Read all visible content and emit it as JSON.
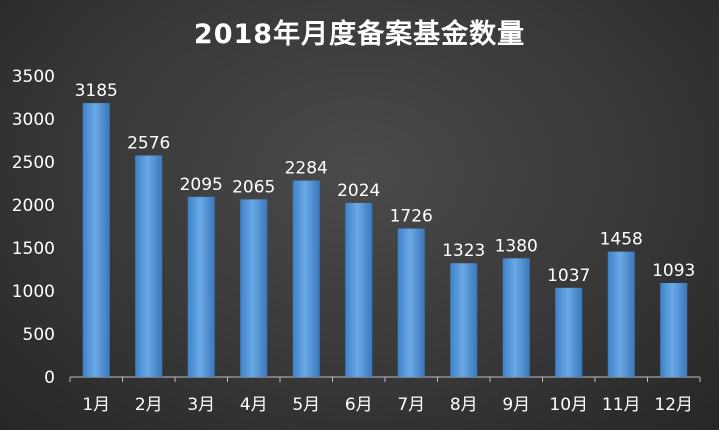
{
  "chart_data": {
    "type": "bar",
    "title": "2018年月度备案基金数量",
    "xlabel": "",
    "ylabel": "",
    "categories": [
      "1月",
      "2月",
      "3月",
      "4月",
      "5月",
      "6月",
      "7月",
      "8月",
      "9月",
      "10月",
      "11月",
      "12月"
    ],
    "values": [
      3185,
      2576,
      2095,
      2065,
      2284,
      2024,
      1726,
      1323,
      1380,
      1037,
      1458,
      1093
    ],
    "ylim": [
      0,
      3500
    ],
    "yticks": [
      0,
      500,
      1000,
      1500,
      2000,
      2500,
      3000,
      3500
    ],
    "grid": false,
    "legend": "none",
    "bar_color": "#4f93d8",
    "bar_color_light": "#7db5ea",
    "axis_color": "#bfbfbf"
  }
}
